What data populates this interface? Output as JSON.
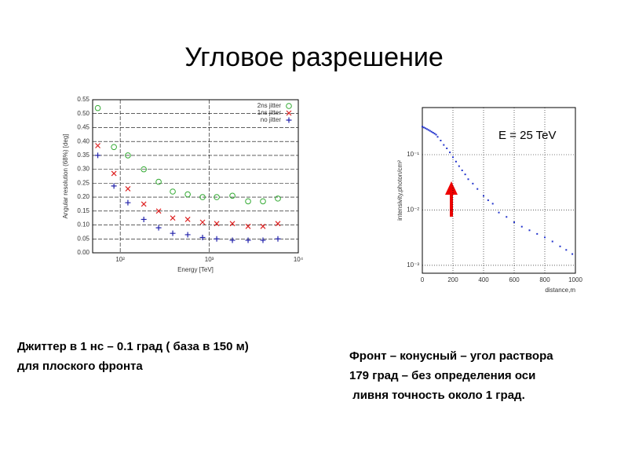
{
  "title": "Угловое разрешение",
  "captions": [
    [
      "Джиттер в 1 нс – 0.1 град ( база в 150 м)",
      "для плоского фронта"
    ],
    [
      "Фронт – конусный – угол раствора",
      "179 град – без определения оси",
      " ливня точность около 1 град."
    ]
  ],
  "chart_data": [
    {
      "type": "scatter",
      "xlabel": "Energy [TeV]",
      "ylabel": "Angular resolution (68%) [deg]",
      "xlog": true,
      "xlim": [
        49,
        10000
      ],
      "xticks": [
        {
          "value": 100,
          "label": "10²"
        },
        {
          "value": 1000,
          "label": "10³"
        },
        {
          "value": 10000,
          "label": "10⁴"
        }
      ],
      "ylim": [
        0,
        0.55
      ],
      "yticks": [
        {
          "value": 0,
          "label": "0.00"
        },
        {
          "value": 0.05,
          "label": "0.05"
        },
        {
          "value": 0.1,
          "label": "0.10"
        },
        {
          "value": 0.15,
          "label": "0.15"
        },
        {
          "value": 0.2,
          "label": "0.20"
        },
        {
          "value": 0.25,
          "label": "0.25"
        },
        {
          "value": 0.3,
          "label": "0.30"
        },
        {
          "value": 0.35,
          "label": "0.35"
        },
        {
          "value": 0.4,
          "label": "0.40"
        },
        {
          "value": 0.45,
          "label": "0.45"
        },
        {
          "value": 0.5,
          "label": "0.50"
        },
        {
          "value": 0.55,
          "label": "0.55"
        }
      ],
      "grid": true,
      "legend": "upper right",
      "x": [
        56,
        85,
        122,
        184,
        270,
        389,
        573,
        841,
        1213,
        1820,
        2730,
        4010,
        5900
      ],
      "series": [
        {
          "name": "2ns jitter",
          "color": "#33aa33",
          "marker": "o",
          "values": [
            0.52,
            0.38,
            0.35,
            0.3,
            0.255,
            0.22,
            0.21,
            0.2,
            0.2,
            0.205,
            0.185,
            0.185,
            0.195
          ]
        },
        {
          "name": "1ns jitter",
          "color": "#dd2222",
          "marker": "x",
          "values": [
            0.385,
            0.285,
            0.23,
            0.175,
            0.15,
            0.125,
            0.12,
            0.11,
            0.105,
            0.105,
            0.095,
            0.095,
            0.105
          ]
        },
        {
          "name": "no jitter",
          "color": "#2222aa",
          "marker": "+",
          "values": [
            0.35,
            0.24,
            0.18,
            0.12,
            0.09,
            0.07,
            0.065,
            0.055,
            0.05,
            0.045,
            0.045,
            0.045,
            0.05
          ]
        }
      ]
    },
    {
      "type": "scatter",
      "xlabel": "distance,m",
      "ylabel": "intensivity,photon/cm²",
      "annotation": "E = 25 TeV",
      "ylog": true,
      "xlim": [
        0,
        1000
      ],
      "xticks": [
        0,
        200,
        400,
        600,
        800,
        1000
      ],
      "ylim": [
        0.00072,
        0.71
      ],
      "yticks": [
        {
          "value": 0.1,
          "label": "10⁻¹"
        },
        {
          "value": 0.01,
          "label": "10⁻²"
        },
        {
          "value": 0.001,
          "label": "10⁻³"
        }
      ],
      "grid": true,
      "color": "#2233cc",
      "marker": "dot",
      "x": [
        0,
        10,
        20,
        30,
        40,
        50,
        60,
        70,
        80,
        90,
        100,
        120,
        140,
        160,
        180,
        200,
        220,
        240,
        260,
        280,
        300,
        330,
        360,
        400,
        430,
        460,
        500,
        550,
        600,
        650,
        700,
        750,
        800,
        850,
        900,
        940,
        980
      ],
      "values": [
        0.32,
        0.31,
        0.3,
        0.29,
        0.28,
        0.27,
        0.26,
        0.25,
        0.24,
        0.23,
        0.21,
        0.18,
        0.15,
        0.13,
        0.11,
        0.09,
        0.075,
        0.062,
        0.052,
        0.044,
        0.036,
        0.03,
        0.024,
        0.018,
        0.015,
        0.013,
        0.009,
        0.0075,
        0.006,
        0.005,
        0.0043,
        0.0037,
        0.0032,
        0.0027,
        0.0022,
        0.0019,
        0.0016
      ]
    }
  ]
}
